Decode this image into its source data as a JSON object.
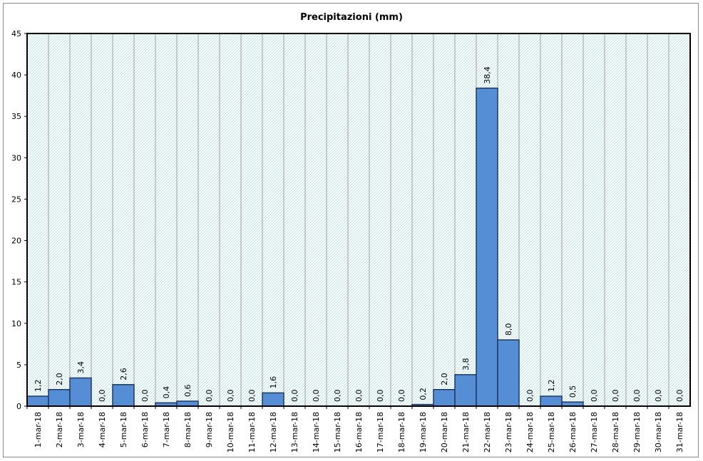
{
  "chart_data": {
    "type": "bar",
    "title": "Precipitazioni (mm)",
    "xlabel": "",
    "ylabel": "",
    "ylim": [
      0,
      45
    ],
    "yticks": [
      "0",
      "5",
      "10",
      "15",
      "20",
      "25",
      "30",
      "35",
      "40",
      "45"
    ],
    "grid": true,
    "categories": [
      "1-mar-18",
      "2-mar-18",
      "3-mar-18",
      "4-mar-18",
      "5-mar-18",
      "6-mar-18",
      "7-mar-18",
      "8-mar-18",
      "9-mar-18",
      "10-mar-18",
      "11-mar-18",
      "12-mar-18",
      "13-mar-18",
      "14-mar-18",
      "15-mar-18",
      "16-mar-18",
      "17-mar-18",
      "18-mar-18",
      "19-mar-18",
      "20-mar-18",
      "21-mar-18",
      "22-mar-18",
      "23-mar-18",
      "24-mar-18",
      "25-mar-18",
      "26-mar-18",
      "27-mar-18",
      "28-mar-18",
      "29-mar-18",
      "30-mar-18",
      "31-mar-18"
    ],
    "values": [
      1.2,
      2.0,
      3.4,
      0.0,
      2.6,
      0.0,
      0.4,
      0.6,
      0.0,
      0.0,
      0.0,
      1.6,
      0.0,
      0.0,
      0.0,
      0.0,
      0.0,
      0.0,
      0.2,
      2.0,
      3.8,
      38.4,
      8.0,
      0.0,
      1.2,
      0.5,
      0.0,
      0.0,
      0.0,
      0.0,
      0.0
    ],
    "data_labels": [
      "1,2",
      "2,0",
      "3,4",
      "0,0",
      "2,6",
      "0,0",
      "0,4",
      "0,6",
      "0,0",
      "0,0",
      "0,0",
      "1,6",
      "0,0",
      "0,0",
      "0,0",
      "0,0",
      "0,0",
      "0,0",
      "0,2",
      "2,0",
      "3,8",
      "38,4",
      "8,0",
      "0,0",
      "1,2",
      "0,5",
      "0,0",
      "0,0",
      "0,0",
      "0,0",
      "0,0"
    ],
    "colors": {
      "bar": "#558ed5",
      "bar_border": "#1f3864",
      "plot_bg": "#dcf0f0",
      "grid": "#a0a0a0"
    }
  }
}
